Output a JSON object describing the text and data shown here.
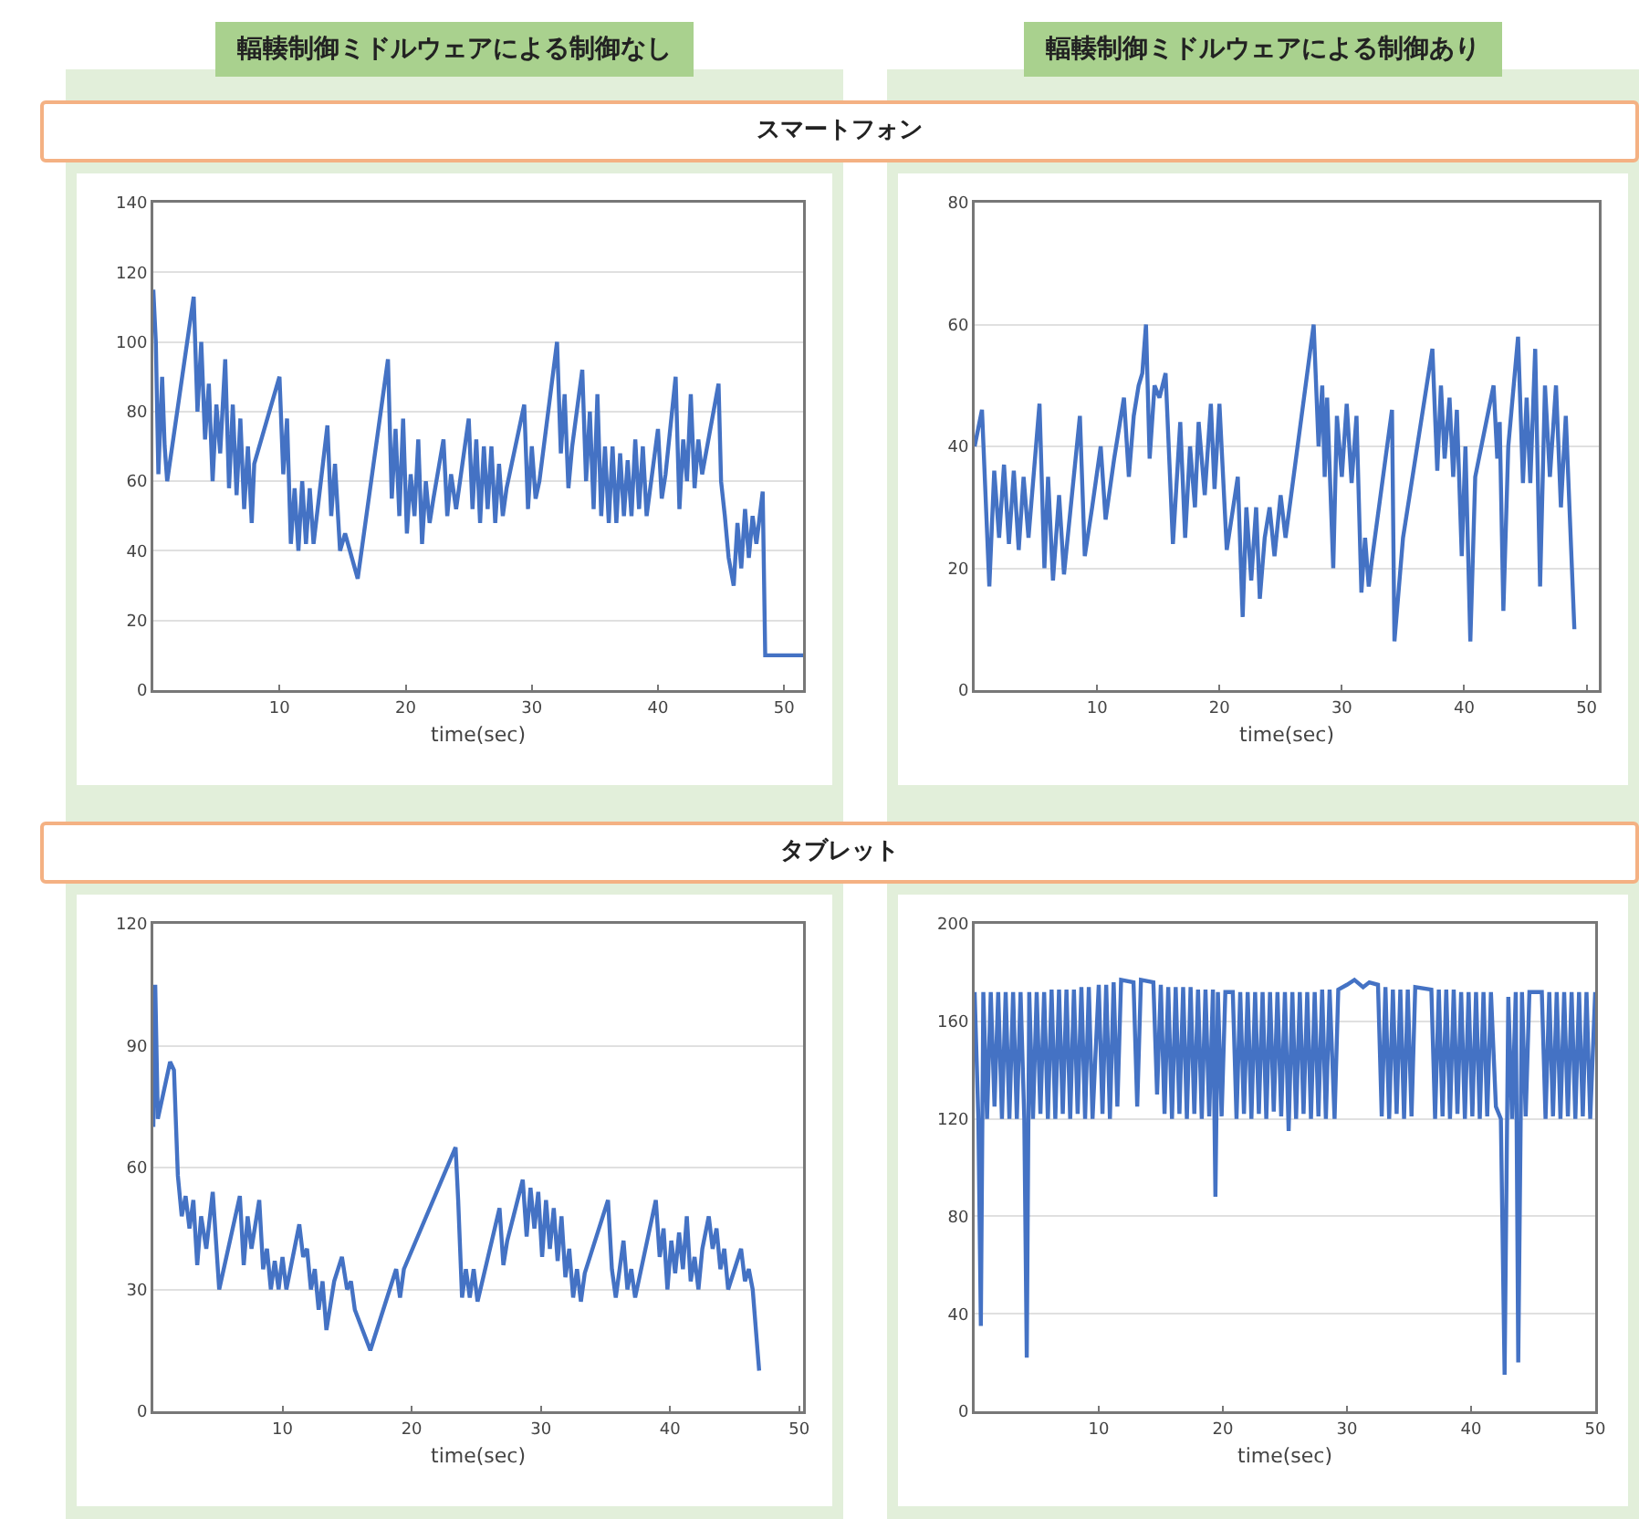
{
  "chart_data": [
    {
      "type": "line",
      "title": "輻輳制御ミドルウェアによる制御なし",
      "subtitle": "スマートフォン",
      "xlabel": "time(sec)",
      "xlim": [
        0,
        51.5
      ],
      "ylim": [
        0,
        140
      ],
      "xticks": [
        10,
        20,
        30,
        40,
        50
      ],
      "yticks": [
        0,
        20,
        40,
        60,
        80,
        100,
        120,
        140
      ],
      "grid": "y",
      "color": "#4472c4",
      "x": [
        0,
        0.2,
        0.4,
        0.7,
        0.9,
        1.1,
        3.2,
        3.5,
        3.8,
        4.1,
        4.4,
        4.7,
        5.0,
        5.3,
        5.7,
        6.0,
        6.3,
        6.6,
        6.9,
        7.2,
        7.5,
        7.8,
        8.0,
        10.0,
        10.3,
        10.6,
        10.9,
        11.2,
        11.5,
        11.8,
        12.1,
        12.4,
        12.7,
        13.8,
        14.1,
        14.4,
        14.8,
        15.2,
        16.2,
        18.6,
        18.9,
        19.2,
        19.5,
        19.8,
        20.1,
        20.4,
        20.7,
        21.0,
        21.3,
        21.6,
        21.9,
        22.2,
        23.0,
        23.3,
        23.6,
        24.0,
        25.0,
        25.3,
        25.6,
        25.9,
        26.2,
        26.5,
        26.8,
        27.1,
        27.4,
        27.7,
        28.0,
        29.4,
        29.7,
        30.0,
        30.3,
        30.6,
        32.0,
        32.3,
        32.6,
        32.9,
        33.2,
        34.0,
        34.3,
        34.6,
        34.9,
        35.2,
        35.5,
        35.8,
        36.1,
        36.4,
        36.7,
        37.0,
        37.3,
        37.6,
        37.9,
        38.2,
        38.5,
        38.8,
        39.1,
        40.0,
        40.3,
        40.6,
        41.4,
        41.7,
        42.0,
        42.3,
        42.6,
        42.9,
        43.2,
        43.5,
        44.8,
        45.0,
        45.3,
        45.6,
        46.0,
        46.3,
        46.6,
        46.9,
        47.2,
        47.5,
        47.8,
        48.3,
        48.5,
        51.5
      ],
      "values": [
        115,
        100,
        62,
        90,
        70,
        60,
        113,
        80,
        100,
        72,
        88,
        60,
        82,
        68,
        95,
        58,
        82,
        56,
        78,
        52,
        70,
        48,
        65,
        90,
        62,
        78,
        42,
        58,
        40,
        60,
        42,
        58,
        42,
        76,
        50,
        65,
        40,
        45,
        32,
        95,
        55,
        75,
        50,
        78,
        45,
        62,
        50,
        72,
        42,
        60,
        48,
        55,
        72,
        50,
        62,
        52,
        78,
        52,
        72,
        48,
        70,
        52,
        70,
        48,
        65,
        50,
        58,
        82,
        52,
        70,
        55,
        60,
        100,
        68,
        85,
        58,
        70,
        92,
        60,
        80,
        52,
        85,
        50,
        70,
        48,
        70,
        48,
        68,
        50,
        66,
        50,
        72,
        52,
        70,
        50,
        75,
        55,
        62,
        90,
        52,
        72,
        60,
        85,
        58,
        72,
        62,
        88,
        60,
        50,
        38,
        30,
        48,
        35,
        52,
        38,
        50,
        42,
        57,
        10,
        10
      ]
    },
    {
      "type": "line",
      "title": "輻輳制御ミドルウェアによる制御あり",
      "xlabel": "time(sec)",
      "xlim": [
        0,
        51
      ],
      "ylim": [
        0,
        80
      ],
      "xticks": [
        10,
        20,
        30,
        40,
        50
      ],
      "yticks": [
        0,
        20,
        40,
        60,
        80
      ],
      "grid": "y",
      "color": "#4472c4",
      "x": [
        0,
        0.6,
        1.2,
        1.6,
        2.0,
        2.4,
        2.8,
        3.2,
        3.6,
        4.0,
        4.4,
        5.3,
        5.7,
        6.0,
        6.4,
        6.9,
        7.3,
        8.6,
        9.0,
        9.6,
        10.3,
        10.7,
        11.4,
        12.2,
        12.6,
        13.0,
        13.4,
        13.7,
        14.0,
        14.3,
        14.7,
        15.1,
        15.6,
        16.2,
        16.8,
        17.2,
        17.6,
        18.0,
        18.3,
        18.8,
        19.3,
        19.6,
        20.0,
        20.6,
        21.5,
        21.9,
        22.2,
        22.6,
        23.0,
        23.3,
        23.7,
        24.1,
        24.5,
        25.0,
        25.4,
        27.7,
        28.1,
        28.4,
        28.6,
        28.8,
        29.3,
        29.6,
        30.0,
        30.4,
        30.8,
        31.2,
        31.6,
        31.9,
        32.2,
        32.5,
        34.1,
        34.3,
        35.0,
        37.4,
        37.8,
        38.1,
        38.4,
        38.8,
        39.1,
        39.4,
        39.8,
        40.1,
        40.5,
        40.9,
        41.4,
        42.4,
        42.7,
        42.9,
        43.2,
        43.6,
        44.4,
        44.8,
        45.1,
        45.4,
        45.8,
        46.2,
        46.6,
        47.0,
        47.5,
        47.9,
        48.3,
        49.0
      ],
      "values": [
        40,
        46,
        17,
        36,
        25,
        37,
        24,
        36,
        23,
        35,
        25,
        47,
        20,
        35,
        18,
        32,
        19,
        45,
        22,
        30,
        40,
        28,
        38,
        48,
        35,
        45,
        50,
        52,
        60,
        38,
        50,
        48,
        52,
        24,
        44,
        25,
        40,
        30,
        44,
        32,
        47,
        33,
        47,
        23,
        35,
        12,
        30,
        18,
        30,
        15,
        25,
        30,
        22,
        32,
        25,
        60,
        40,
        50,
        35,
        48,
        20,
        45,
        35,
        47,
        34,
        45,
        16,
        25,
        17,
        22,
        46,
        8,
        25,
        56,
        36,
        50,
        38,
        48,
        35,
        46,
        22,
        40,
        8,
        35,
        40,
        50,
        38,
        44,
        13,
        40,
        58,
        34,
        48,
        34,
        56,
        17,
        50,
        35,
        50,
        30,
        45,
        10
      ]
    },
    {
      "type": "line",
      "subtitle": "タブレット",
      "xlabel": "time(sec)",
      "xlim": [
        0,
        50.3
      ],
      "ylim": [
        0,
        120
      ],
      "xticks": [
        10,
        20,
        30,
        40,
        50
      ],
      "yticks": [
        0,
        30,
        60,
        90,
        120
      ],
      "grid": "y",
      "color": "#4472c4",
      "x": [
        0,
        0.15,
        0.35,
        1.3,
        1.6,
        1.9,
        2.2,
        2.5,
        2.8,
        3.1,
        3.4,
        3.7,
        4.1,
        4.6,
        5.1,
        6.7,
        7.0,
        7.3,
        7.6,
        8.2,
        8.5,
        8.8,
        9.1,
        9.4,
        9.7,
        10.0,
        10.3,
        11.3,
        11.6,
        11.9,
        12.2,
        12.5,
        12.8,
        13.1,
        13.4,
        14.0,
        14.6,
        15.0,
        15.3,
        15.6,
        16.2,
        16.8,
        18.8,
        19.1,
        19.4,
        23.4,
        23.6,
        23.9,
        24.2,
        24.5,
        24.8,
        25.1,
        26.8,
        27.1,
        27.4,
        28.6,
        28.9,
        29.2,
        29.5,
        29.8,
        30.1,
        30.4,
        30.7,
        31.0,
        31.3,
        31.6,
        31.9,
        32.2,
        32.5,
        32.8,
        33.1,
        33.4,
        35.2,
        35.5,
        35.8,
        36.4,
        36.7,
        37.0,
        37.3,
        38.9,
        39.2,
        39.5,
        39.8,
        40.1,
        40.4,
        40.7,
        41.0,
        41.3,
        41.6,
        41.9,
        42.2,
        42.5,
        43.0,
        43.3,
        43.6,
        43.9,
        44.2,
        44.5,
        45.5,
        45.8,
        46.1,
        46.4,
        46.9
      ],
      "values": [
        70,
        105,
        72,
        86,
        84,
        58,
        48,
        53,
        45,
        52,
        36,
        48,
        40,
        54,
        30,
        53,
        36,
        48,
        40,
        52,
        35,
        40,
        30,
        37,
        30,
        38,
        30,
        46,
        38,
        40,
        30,
        35,
        25,
        32,
        20,
        32,
        38,
        30,
        32,
        25,
        20,
        15,
        35,
        28,
        35,
        65,
        52,
        28,
        35,
        28,
        35,
        27,
        50,
        36,
        42,
        57,
        43,
        55,
        45,
        54,
        38,
        52,
        40,
        50,
        37,
        48,
        33,
        40,
        28,
        35,
        27,
        34,
        52,
        35,
        28,
        42,
        30,
        35,
        28,
        52,
        38,
        45,
        30,
        42,
        34,
        44,
        35,
        48,
        32,
        38,
        30,
        40,
        48,
        40,
        45,
        35,
        40,
        30,
        40,
        32,
        35,
        30,
        10
      ]
    },
    {
      "type": "line",
      "xlabel": "time(sec)",
      "xlim": [
        0,
        50
      ],
      "ylim": [
        0,
        200
      ],
      "xticks": [
        10,
        20,
        30,
        40,
        50
      ],
      "yticks": [
        0,
        40,
        80,
        120,
        160,
        200
      ],
      "grid": "y",
      "color": "#4472c4",
      "x": [
        0,
        0.3,
        0.5,
        0.7,
        1.0,
        1.3,
        1.6,
        1.9,
        2.2,
        2.5,
        2.8,
        3.1,
        3.4,
        3.7,
        4.0,
        4.2,
        4.4,
        4.7,
        5.0,
        5.3,
        5.6,
        5.9,
        6.2,
        6.5,
        6.8,
        7.1,
        7.4,
        7.7,
        8.0,
        8.3,
        8.6,
        8.9,
        9.2,
        9.5,
        10.0,
        10.3,
        10.6,
        10.9,
        11.2,
        11.5,
        11.8,
        12.8,
        13.1,
        13.4,
        14.4,
        14.7,
        15.0,
        15.3,
        15.6,
        15.9,
        16.2,
        16.5,
        16.8,
        17.1,
        17.4,
        17.7,
        18.0,
        18.3,
        18.6,
        18.9,
        19.2,
        19.4,
        19.6,
        19.9,
        20.2,
        20.8,
        21.1,
        21.4,
        21.7,
        22.0,
        22.3,
        22.6,
        22.9,
        23.2,
        23.5,
        23.8,
        24.1,
        24.4,
        24.7,
        25.0,
        25.3,
        25.6,
        25.9,
        26.2,
        26.5,
        26.8,
        27.1,
        27.4,
        27.7,
        28.0,
        28.3,
        28.6,
        29.0,
        29.3,
        30.0,
        30.6,
        31.3,
        31.8,
        32.5,
        32.8,
        33.1,
        33.4,
        33.7,
        34.0,
        34.3,
        34.6,
        34.9,
        35.2,
        35.5,
        36.8,
        37.1,
        37.4,
        37.7,
        38.0,
        38.3,
        38.6,
        38.9,
        39.2,
        39.5,
        39.8,
        40.1,
        40.4,
        40.7,
        41.0,
        41.3,
        41.6,
        42.0,
        42.4,
        42.7,
        43.0,
        43.3,
        43.6,
        43.8,
        44.1,
        44.4,
        44.7,
        45.7,
        46.0,
        46.3,
        46.6,
        46.9,
        47.2,
        47.5,
        47.8,
        48.1,
        48.4,
        48.7,
        49.0,
        49.3,
        49.6,
        50.0
      ],
      "values": [
        172,
        120,
        35,
        172,
        120,
        172,
        125,
        172,
        120,
        172,
        120,
        172,
        120,
        172,
        120,
        22,
        172,
        120,
        172,
        122,
        172,
        120,
        173,
        120,
        173,
        122,
        173,
        120,
        173,
        122,
        174,
        120,
        174,
        120,
        175,
        122,
        175,
        120,
        176,
        125,
        177,
        176,
        125,
        177,
        176,
        130,
        175,
        122,
        174,
        120,
        174,
        122,
        174,
        120,
        174,
        122,
        173,
        120,
        173,
        121,
        173,
        88,
        172,
        121,
        172,
        172,
        120,
        172,
        122,
        172,
        120,
        172,
        122,
        172,
        120,
        172,
        123,
        172,
        121,
        172,
        115,
        172,
        120,
        172,
        122,
        172,
        120,
        172,
        121,
        173,
        120,
        173,
        120,
        173,
        175,
        177,
        174,
        176,
        175,
        121,
        174,
        120,
        173,
        122,
        173,
        120,
        173,
        121,
        174,
        173,
        120,
        173,
        121,
        173,
        120,
        173,
        122,
        172,
        120,
        172,
        121,
        172,
        120,
        172,
        121,
        172,
        125,
        120,
        15,
        170,
        120,
        172,
        20,
        172,
        121,
        172,
        172,
        120,
        172,
        121,
        172,
        120,
        172,
        121,
        172,
        120,
        172,
        121,
        172,
        120,
        172
      ]
    }
  ]
}
